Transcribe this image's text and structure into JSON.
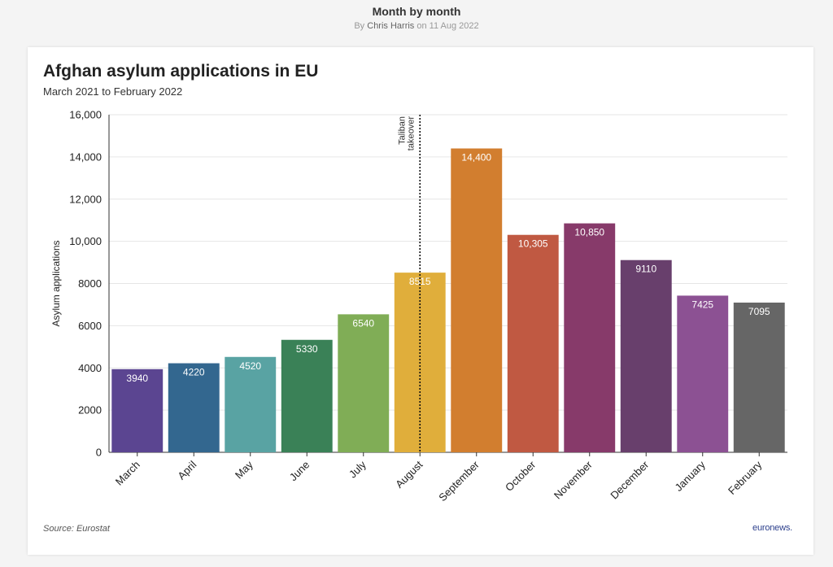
{
  "header": {
    "title": "Month by month",
    "byline_prefix": "By",
    "author": "Chris Harris",
    "date_text": "on 11 Aug 2022"
  },
  "source": "Source: Eurostat",
  "logo": "euronews.",
  "colors": {
    "March": "#5b4591",
    "April": "#33678f",
    "May": "#59a3a3",
    "June": "#3a8157",
    "July": "#80ad56",
    "August": "#e0ae3b",
    "September": "#d27e2f",
    "October": "#c05942",
    "November": "#873a6a",
    "December": "#683f6c",
    "January": "#8c5193",
    "February": "#666666"
  },
  "chart_data": {
    "type": "bar",
    "title": "Afghan asylum applications in EU",
    "subtitle": "March 2021 to February 2022",
    "xlabel": "",
    "ylabel": "Asylum applications",
    "ylim": [
      0,
      16000
    ],
    "yticks": [
      0,
      2000,
      4000,
      6000,
      8000,
      10000,
      12000,
      14000,
      16000
    ],
    "ytick_labels": [
      "0",
      "2000",
      "4000",
      "6000",
      "8000",
      "10,000",
      "12,000",
      "14,000",
      "16,000"
    ],
    "categories": [
      "March",
      "April",
      "May",
      "June",
      "July",
      "August",
      "September",
      "October",
      "November",
      "December",
      "January",
      "February"
    ],
    "values": [
      3940,
      4220,
      4520,
      5330,
      6540,
      8515,
      14400,
      10305,
      10850,
      9110,
      7425,
      7095
    ],
    "value_labels": [
      "3940",
      "4220",
      "4520",
      "5330",
      "6540",
      "8515",
      "14,400",
      "10,305",
      "10,850",
      "9110",
      "7425",
      "7095"
    ],
    "grid": true,
    "annotation": {
      "text_lines": [
        "Taliban",
        "takeover"
      ],
      "category": "August",
      "style": "dotted vertical line"
    }
  }
}
